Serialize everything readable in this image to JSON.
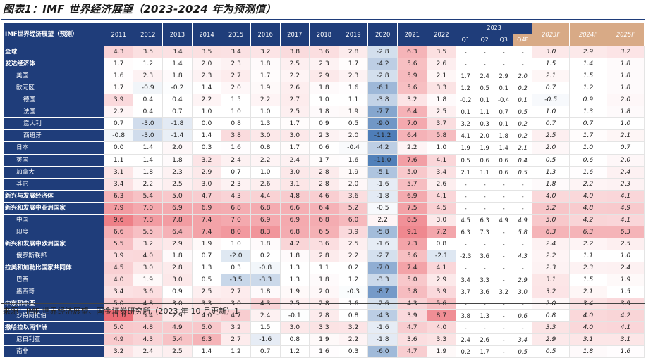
{
  "title": "图表1：IMF 世界经济展望（2023-2024 年为预测值）",
  "source": "来源：IMF 世界经济展望、国金证券研究所（2023 年 10 月更新）1",
  "header": {
    "label": "IMF世界经济展望（预测）",
    "years": [
      "2011",
      "2012",
      "2013",
      "2014",
      "2015",
      "2016",
      "2017",
      "2018",
      "2019",
      "2020",
      "2021",
      "2022"
    ],
    "quarter_group": "2023",
    "quarters": [
      "Q1",
      "Q2",
      "Q3",
      "Q4F"
    ],
    "forecasts": [
      "2023F",
      "2024F",
      "2025F"
    ]
  },
  "colors": {
    "header_bg": "#1f3d7a",
    "forecast_header_bg": "#d8aa86",
    "neg_max": "#3a6fb0",
    "pos_max": "#e8505a"
  },
  "rows": [
    {
      "label": "全球",
      "style": "bold",
      "years": [
        "4.3",
        "3.5",
        "3.4",
        "3.5",
        "3.4",
        "3.2",
        "3.8",
        "3.6",
        "2.8",
        "-2.8",
        "6.3",
        "3.5"
      ],
      "q": [
        "-",
        "-",
        "-",
        "-"
      ],
      "f": [
        "3.0",
        "2.9",
        "3.2"
      ]
    },
    {
      "label": "发达经济体",
      "style": "bold",
      "years": [
        "1.7",
        "1.2",
        "1.4",
        "2.0",
        "2.3",
        "1.8",
        "2.5",
        "2.3",
        "1.7",
        "-4.2",
        "5.6",
        "2.6"
      ],
      "q": [
        "-",
        "-",
        "-",
        "-"
      ],
      "f": [
        "1.5",
        "1.4",
        "1.8"
      ]
    },
    {
      "label": "美国",
      "style": "sub",
      "years": [
        "1.6",
        "2.3",
        "1.8",
        "2.3",
        "2.7",
        "1.7",
        "2.2",
        "2.9",
        "2.3",
        "-2.8",
        "5.9",
        "2.1"
      ],
      "q": [
        "1.7",
        "2.4",
        "2.9",
        "2.0"
      ],
      "f": [
        "2.1",
        "1.5",
        "1.8"
      ]
    },
    {
      "label": "欧元区",
      "style": "sub",
      "years": [
        "1.7",
        "-0.9",
        "-0.2",
        "1.4",
        "2.0",
        "1.9",
        "2.6",
        "1.8",
        "1.6",
        "-6.1",
        "5.6",
        "3.3"
      ],
      "q": [
        "1.2",
        "0.5",
        "0.1",
        "0.2"
      ],
      "f": [
        "0.7",
        "1.2",
        "1.8"
      ]
    },
    {
      "label": "德国",
      "style": "sub2",
      "years": [
        "3.9",
        "0.4",
        "0.4",
        "2.2",
        "1.5",
        "2.2",
        "2.7",
        "1.0",
        "1.1",
        "-3.8",
        "3.2",
        "1.8"
      ],
      "q": [
        "-0.2",
        "0.1",
        "-0.4",
        "0.1"
      ],
      "f": [
        "-0.5",
        "0.9",
        "2.0"
      ]
    },
    {
      "label": "法国",
      "style": "sub2",
      "years": [
        "2.2",
        "0.4",
        "0.7",
        "1.0",
        "1.0",
        "1.0",
        "2.5",
        "1.8",
        "1.9",
        "-7.7",
        "6.4",
        "2.5"
      ],
      "q": [
        "0.1",
        "1.1",
        "0.7",
        "0.5"
      ],
      "f": [
        "1.0",
        "1.3",
        "1.8"
      ]
    },
    {
      "label": "意大利",
      "style": "sub2",
      "years": [
        "0.7",
        "-3.0",
        "-1.8",
        "0.0",
        "0.8",
        "1.3",
        "1.7",
        "0.9",
        "0.5",
        "-9.0",
        "7.0",
        "3.7"
      ],
      "q": [
        "3.2",
        "0.3",
        "0.1",
        "0.2"
      ],
      "f": [
        "0.7",
        "0.7",
        "1.0"
      ]
    },
    {
      "label": "西班牙",
      "style": "sub2",
      "years": [
        "-0.8",
        "-3.0",
        "-1.4",
        "1.4",
        "3.8",
        "3.0",
        "3.0",
        "2.3",
        "2.0",
        "-11.2",
        "6.4",
        "5.8"
      ],
      "q": [
        "4.1",
        "2.0",
        "1.8",
        "0.2"
      ],
      "f": [
        "2.5",
        "1.7",
        "2.1"
      ]
    },
    {
      "label": "日本",
      "style": "sub",
      "years": [
        "0.0",
        "1.4",
        "2.0",
        "0.3",
        "1.6",
        "0.8",
        "1.7",
        "0.6",
        "-0.4",
        "-4.2",
        "2.2",
        "1.0"
      ],
      "q": [
        "1.9",
        "1.9",
        "1.4",
        "2.1"
      ],
      "f": [
        "2.0",
        "1.0",
        "0.7"
      ]
    },
    {
      "label": "英国",
      "style": "sub",
      "years": [
        "1.1",
        "1.4",
        "1.8",
        "3.2",
        "2.4",
        "2.2",
        "2.4",
        "1.7",
        "1.6",
        "-11.0",
        "7.6",
        "4.1"
      ],
      "q": [
        "0.5",
        "0.6",
        "0.6",
        "0.4"
      ],
      "f": [
        "0.5",
        "0.6",
        "2.0"
      ]
    },
    {
      "label": "加拿大",
      "style": "sub",
      "years": [
        "3.1",
        "1.8",
        "2.3",
        "2.9",
        "0.7",
        "1.0",
        "3.0",
        "2.8",
        "1.9",
        "-5.1",
        "5.0",
        "3.4"
      ],
      "q": [
        "2.1",
        "1.1",
        "0.6",
        "0.5"
      ],
      "f": [
        "1.3",
        "1.6",
        "2.4"
      ]
    },
    {
      "label": "其它",
      "style": "sub",
      "years": [
        "3.4",
        "2.2",
        "2.5",
        "3.0",
        "2.3",
        "2.6",
        "3.1",
        "2.8",
        "2.0",
        "-1.6",
        "5.7",
        "2.6"
      ],
      "q": [
        "-",
        "-",
        "-",
        "-"
      ],
      "f": [
        "1.8",
        "2.2",
        "2.3"
      ]
    },
    {
      "label": "新兴与发展经济体",
      "style": "bold",
      "years": [
        "6.3",
        "5.4",
        "5.0",
        "4.7",
        "4.3",
        "4.4",
        "4.8",
        "4.6",
        "3.6",
        "-1.8",
        "6.9",
        "4.1"
      ],
      "q": [
        "-",
        "-",
        "-",
        "-"
      ],
      "f": [
        "4.0",
        "4.0",
        "4.1"
      ]
    },
    {
      "label": "新兴和发展中亚洲国家",
      "style": "bold",
      "years": [
        "7.9",
        "7.0",
        "6.9",
        "6.9",
        "6.8",
        "6.8",
        "6.6",
        "6.4",
        "5.2",
        "-0.5",
        "7.5",
        "4.5"
      ],
      "q": [
        "-",
        "-",
        "-",
        "-"
      ],
      "f": [
        "5.2",
        "4.8",
        "4.9"
      ]
    },
    {
      "label": "中国",
      "style": "sub",
      "years": [
        "9.6",
        "7.8",
        "7.8",
        "7.4",
        "7.0",
        "6.9",
        "6.9",
        "6.8",
        "6.0",
        "2.2",
        "8.5",
        "3.0"
      ],
      "q": [
        "4.5",
        "6.3",
        "4.9",
        "4.9"
      ],
      "f": [
        "5.0",
        "4.2",
        "4.1"
      ]
    },
    {
      "label": "印度",
      "style": "sub",
      "years": [
        "6.6",
        "5.5",
        "6.4",
        "7.4",
        "8.0",
        "8.3",
        "6.8",
        "6.5",
        "3.9",
        "-5.8",
        "9.1",
        "7.2"
      ],
      "q": [
        "6.3",
        "7.3",
        "-",
        "5.8"
      ],
      "f": [
        "6.3",
        "6.3",
        "6.3"
      ]
    },
    {
      "label": "新兴和发展中欧洲国家",
      "style": "bold",
      "years": [
        "5.5",
        "3.2",
        "2.9",
        "1.9",
        "1.0",
        "1.8",
        "4.2",
        "3.6",
        "2.5",
        "-1.6",
        "7.3",
        "0.8"
      ],
      "q": [
        "-",
        "-",
        "-",
        "-"
      ],
      "f": [
        "2.4",
        "2.2",
        "2.5"
      ]
    },
    {
      "label": "俄罗斯联邦",
      "style": "sub",
      "years": [
        "3.9",
        "4.0",
        "1.8",
        "0.7",
        "-2.0",
        "0.2",
        "1.8",
        "2.8",
        "2.2",
        "-2.7",
        "5.6",
        "-2.1"
      ],
      "q": [
        "-2.3",
        "3.6",
        "-",
        "4.3"
      ],
      "f": [
        "2.2",
        "1.1",
        "1.0"
      ]
    },
    {
      "label": "拉美和加勒比国家共同体",
      "style": "bold",
      "years": [
        "4.5",
        "3.0",
        "2.8",
        "1.3",
        "0.3",
        "-0.8",
        "1.3",
        "1.1",
        "0.2",
        "-7.0",
        "7.4",
        "4.1"
      ],
      "q": [
        "-",
        "-",
        "-",
        "-"
      ],
      "f": [
        "2.3",
        "2.3",
        "2.4"
      ]
    },
    {
      "label": "巴西",
      "style": "sub",
      "years": [
        "4.0",
        "1.9",
        "3.0",
        "0.5",
        "-3.5",
        "-3.3",
        "1.3",
        "1.8",
        "1.2",
        "-3.3",
        "5.0",
        "2.9"
      ],
      "q": [
        "3.4",
        "3.3",
        "-",
        "2.9"
      ],
      "f": [
        "3.1",
        "1.5",
        "1.9"
      ]
    },
    {
      "label": "墨西哥",
      "style": "sub",
      "years": [
        "3.4",
        "3.6",
        "0.9",
        "2.5",
        "2.7",
        "1.8",
        "1.9",
        "2.0",
        "-0.3",
        "-8.7",
        "5.8",
        "3.9"
      ],
      "q": [
        "3.7",
        "3.6",
        "3.2",
        "3.0"
      ],
      "f": [
        "3.2",
        "2.1",
        "1.5"
      ]
    },
    {
      "label": "中东和中亚",
      "style": "bold",
      "years": [
        "5.0",
        "4.8",
        "3.0",
        "3.3",
        "3.0",
        "4.3",
        "2.5",
        "2.8",
        "1.6",
        "-2.6",
        "4.3",
        "5.6"
      ],
      "q": [
        "-",
        "-",
        "-",
        "-"
      ],
      "f": [
        "2.0",
        "3.4",
        "3.9"
      ]
    },
    {
      "label": "沙特阿拉伯",
      "style": "sub",
      "years": [
        "11.0",
        "5.4",
        "2.9",
        "4.0",
        "4.7",
        "2.4",
        "-0.1",
        "2.8",
        "0.8",
        "-4.3",
        "3.9",
        "8.7"
      ],
      "q": [
        "3.8",
        "1.3",
        "-",
        "0.6"
      ],
      "f": [
        "0.8",
        "4.0",
        "4.2"
      ]
    },
    {
      "label": "撒哈拉以南非洲",
      "style": "bold",
      "years": [
        "5.0",
        "4.8",
        "4.9",
        "5.0",
        "3.2",
        "1.5",
        "3.0",
        "3.3",
        "3.2",
        "-1.6",
        "4.7",
        "4.0"
      ],
      "q": [
        "-",
        "-",
        "-",
        "-"
      ],
      "f": [
        "3.3",
        "4.0",
        "4.1"
      ]
    },
    {
      "label": "尼日利亚",
      "style": "sub",
      "years": [
        "4.9",
        "4.3",
        "5.4",
        "6.3",
        "2.7",
        "-1.6",
        "0.8",
        "1.9",
        "2.2",
        "-1.8",
        "3.6",
        "3.3"
      ],
      "q": [
        "2.4",
        "2.6",
        "-",
        "3.4"
      ],
      "f": [
        "2.9",
        "3.1",
        "3.1"
      ]
    },
    {
      "label": "南非",
      "style": "sub",
      "years": [
        "3.2",
        "2.4",
        "2.5",
        "1.4",
        "1.2",
        "0.7",
        "1.2",
        "1.6",
        "0.3",
        "-6.0",
        "4.7",
        "1.9"
      ],
      "q": [
        "0.2",
        "1.7",
        "-",
        "0.5"
      ],
      "f": [
        "0.5",
        "1.8",
        "1.6"
      ]
    }
  ]
}
